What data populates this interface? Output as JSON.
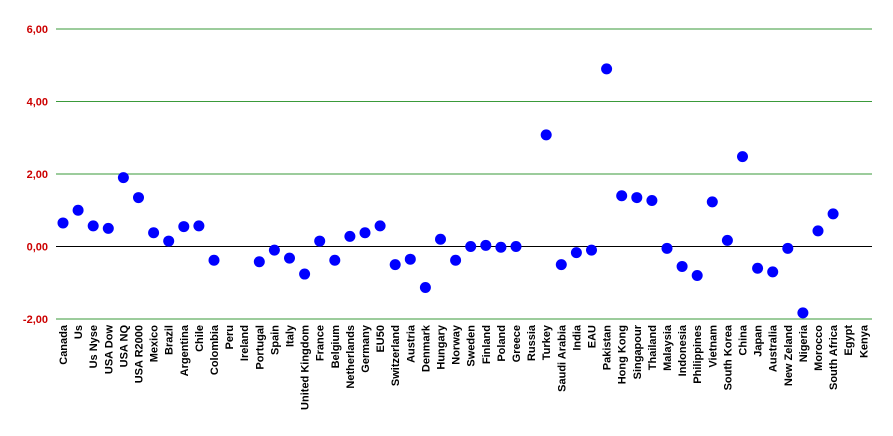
{
  "chart_data": {
    "type": "scatter",
    "title": "",
    "xlabel": "",
    "ylabel": "",
    "ylim": [
      -2,
      6
    ],
    "yticks": [
      -2,
      0,
      2,
      4,
      6
    ],
    "ytick_labels": [
      "-2,00",
      "0,00",
      "2,00",
      "4,00",
      "6,00"
    ],
    "grid": "horizontal",
    "legend": "none",
    "colors": {
      "marker": "#0000ff",
      "gridline": "#3a9a3a",
      "zero_line": "#000000",
      "ytick_text": "#cc0000",
      "xtick_text": "#000000"
    },
    "categories": [
      "Canada",
      "Us",
      "Us Nyse",
      "USA Dow",
      "USA NQ",
      "USA R2000",
      "Mexico",
      "Brazil",
      "Argentina",
      "Chile",
      "Colombia",
      "Peru",
      "Ireland",
      "Portugal",
      "Spain",
      "Italy",
      "United Kingdom",
      "France",
      "Belgium",
      "Netherlands",
      "Germany",
      "EU50",
      "Switzerland",
      "Austria",
      "Denmark",
      "Hungary",
      "Norway",
      "Sweden",
      "Finland",
      "Poland",
      "Greece",
      "Russia",
      "Turkey",
      "Saudi Arabia",
      "India",
      "EAU",
      "Pakistan",
      "Hong Kong",
      "Singapour",
      "Thailand",
      "Malaysia",
      "Indonesia",
      "Philippines",
      "Vietnam",
      "South Korea",
      "China",
      "Japan",
      "Australia",
      "New Zeland",
      "Nigeria",
      "Morocco",
      "South Africa",
      "Egypt",
      "Kenya"
    ],
    "values": [
      0.65,
      1.0,
      0.57,
      0.5,
      1.9,
      1.35,
      0.38,
      0.15,
      0.55,
      0.57,
      -0.38,
      null,
      null,
      -0.42,
      -0.1,
      -0.32,
      -0.76,
      0.15,
      -0.38,
      0.28,
      0.38,
      0.57,
      -0.5,
      -0.35,
      -1.13,
      0.2,
      -0.38,
      0.0,
      0.03,
      -0.02,
      0.0,
      null,
      3.08,
      -0.5,
      -0.17,
      -0.1,
      4.9,
      1.4,
      1.35,
      1.27,
      -0.05,
      -0.55,
      -0.8,
      1.23,
      0.17,
      2.48,
      -0.6,
      -0.7,
      -0.05,
      -1.83,
      0.43,
      0.9,
      null,
      null
    ]
  }
}
